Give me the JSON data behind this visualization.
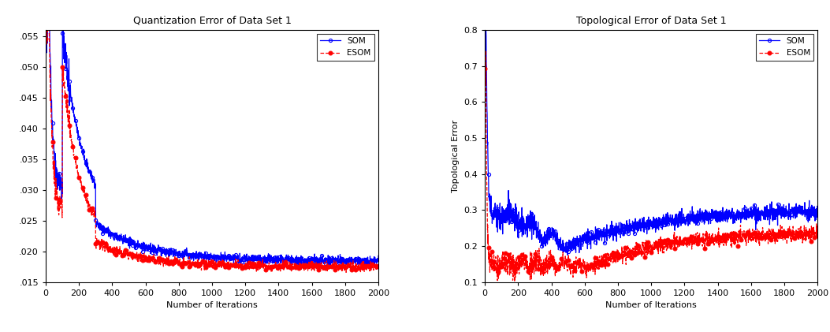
{
  "title_left": "Quantization Error of Data Set 1",
  "title_right": "Topological Error of Data Set 1",
  "xlabel": "Number of Iterations",
  "ylabel_left": "",
  "ylabel_right": "Topological Error",
  "xlim": [
    0,
    2000
  ],
  "ylim_left": [
    0.015,
    0.056
  ],
  "ylim_right": [
    0.1,
    0.8
  ],
  "yticks_left": [
    0.015,
    0.02,
    0.025,
    0.03,
    0.035,
    0.04,
    0.045,
    0.05,
    0.055
  ],
  "yticks_right": [
    0.1,
    0.2,
    0.3,
    0.4,
    0.5,
    0.6,
    0.7,
    0.8
  ],
  "xticks": [
    0,
    200,
    400,
    600,
    800,
    1000,
    1200,
    1400,
    1600,
    1800,
    2000
  ],
  "som_color": "#0000FF",
  "esom_color": "#FF0000",
  "bg_color": "#FFFFFF",
  "legend_som": "SOM",
  "legend_esom": "ESOM",
  "marker_step": 20
}
